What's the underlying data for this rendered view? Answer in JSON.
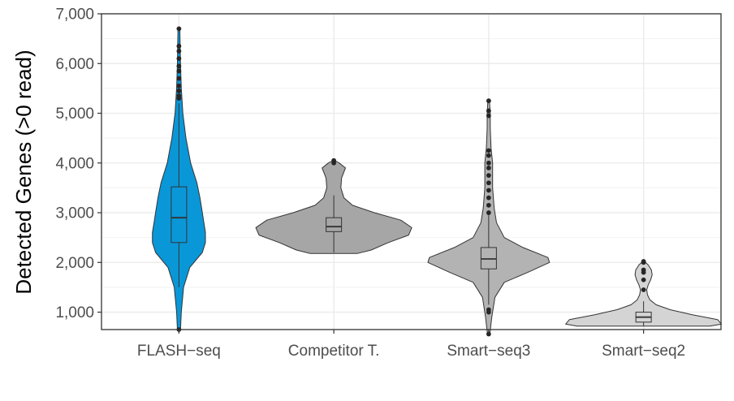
{
  "chart_data": {
    "type": "violin",
    "ylabel": "Detected Genes (>0 read)",
    "xlabel": "",
    "ylim": [
      650,
      7000
    ],
    "yticks": [
      1000,
      2000,
      3000,
      4000,
      5000,
      6000,
      7000
    ],
    "ytick_labels": [
      "1,000",
      "2,000",
      "3,000",
      "4,000",
      "5,000",
      "6,000",
      "7,000"
    ],
    "grid": true,
    "categories": [
      "FLASH−seq",
      "Competitor T.",
      "Smart−seq3",
      "Smart−seq2"
    ],
    "series": [
      {
        "fill": "#0a97d8",
        "box": {
          "whisker_low": 1500,
          "q1": 2400,
          "median": 2900,
          "q3": 3520,
          "whisker_high": 5200
        },
        "outliers": [
          650,
          5300,
          5350,
          5450,
          5550,
          5700,
          5850,
          5950,
          6100,
          6250,
          6350,
          6700
        ],
        "density": [
          [
            650,
            0.02
          ],
          [
            1000,
            0.03
          ],
          [
            1500,
            0.06
          ],
          [
            1900,
            0.14
          ],
          [
            2200,
            0.3
          ],
          [
            2400,
            0.34
          ],
          [
            2600,
            0.34
          ],
          [
            2800,
            0.32
          ],
          [
            3000,
            0.3
          ],
          [
            3300,
            0.27
          ],
          [
            3600,
            0.23
          ],
          [
            4000,
            0.15
          ],
          [
            4500,
            0.09
          ],
          [
            5000,
            0.05
          ],
          [
            5500,
            0.03
          ],
          [
            6000,
            0.02
          ],
          [
            6700,
            0.012
          ]
        ]
      },
      {
        "fill": "#a6a6a6",
        "box": {
          "whisker_low": 2200,
          "q1": 2620,
          "median": 2720,
          "q3": 2900,
          "whisker_high": 3350
        },
        "outliers": [
          4000,
          4050
        ],
        "density": [
          [
            2180,
            0.3
          ],
          [
            2250,
            0.48
          ],
          [
            2400,
            0.7
          ],
          [
            2550,
            0.96
          ],
          [
            2700,
            1.0
          ],
          [
            2850,
            0.86
          ],
          [
            3000,
            0.52
          ],
          [
            3150,
            0.24
          ],
          [
            3300,
            0.13
          ],
          [
            3500,
            0.09
          ],
          [
            3700,
            0.1
          ],
          [
            3900,
            0.15
          ],
          [
            4000,
            0.07
          ],
          [
            4050,
            0.01
          ]
        ]
      },
      {
        "fill": "#b3b3b3",
        "box": {
          "whisker_low": 1150,
          "q1": 1870,
          "median": 2070,
          "q3": 2300,
          "whisker_high": 2950
        },
        "outliers": [
          560,
          1000,
          1050,
          3000,
          3150,
          3300,
          3450,
          3600,
          3750,
          3900,
          4000,
          4150,
          4250,
          4950,
          5050,
          5250
        ],
        "density": [
          [
            560,
            0.015
          ],
          [
            900,
            0.04
          ],
          [
            1300,
            0.08
          ],
          [
            1600,
            0.2
          ],
          [
            1800,
            0.5
          ],
          [
            2000,
            0.78
          ],
          [
            2100,
            0.76
          ],
          [
            2300,
            0.44
          ],
          [
            2500,
            0.2
          ],
          [
            2800,
            0.1
          ],
          [
            3100,
            0.07
          ],
          [
            3500,
            0.05
          ],
          [
            4000,
            0.05
          ],
          [
            4300,
            0.03
          ],
          [
            4700,
            0.02
          ],
          [
            5000,
            0.02
          ],
          [
            5250,
            0.01
          ]
        ]
      },
      {
        "fill": "#d4d4d4",
        "box": {
          "whisker_low": 720,
          "q1": 800,
          "median": 900,
          "q3": 1000,
          "whisker_high": 1220
        },
        "outliers": [
          1450,
          1650,
          1800,
          1850,
          2000,
          2020
        ],
        "density": [
          [
            720,
            0.85
          ],
          [
            760,
            1.0
          ],
          [
            850,
            0.95
          ],
          [
            950,
            0.62
          ],
          [
            1050,
            0.34
          ],
          [
            1150,
            0.16
          ],
          [
            1250,
            0.08
          ],
          [
            1350,
            0.05
          ],
          [
            1450,
            0.04
          ],
          [
            1550,
            0.06
          ],
          [
            1650,
            0.09
          ],
          [
            1750,
            0.11
          ],
          [
            1850,
            0.1
          ],
          [
            1950,
            0.06
          ],
          [
            2020,
            0.01
          ]
        ]
      }
    ]
  }
}
